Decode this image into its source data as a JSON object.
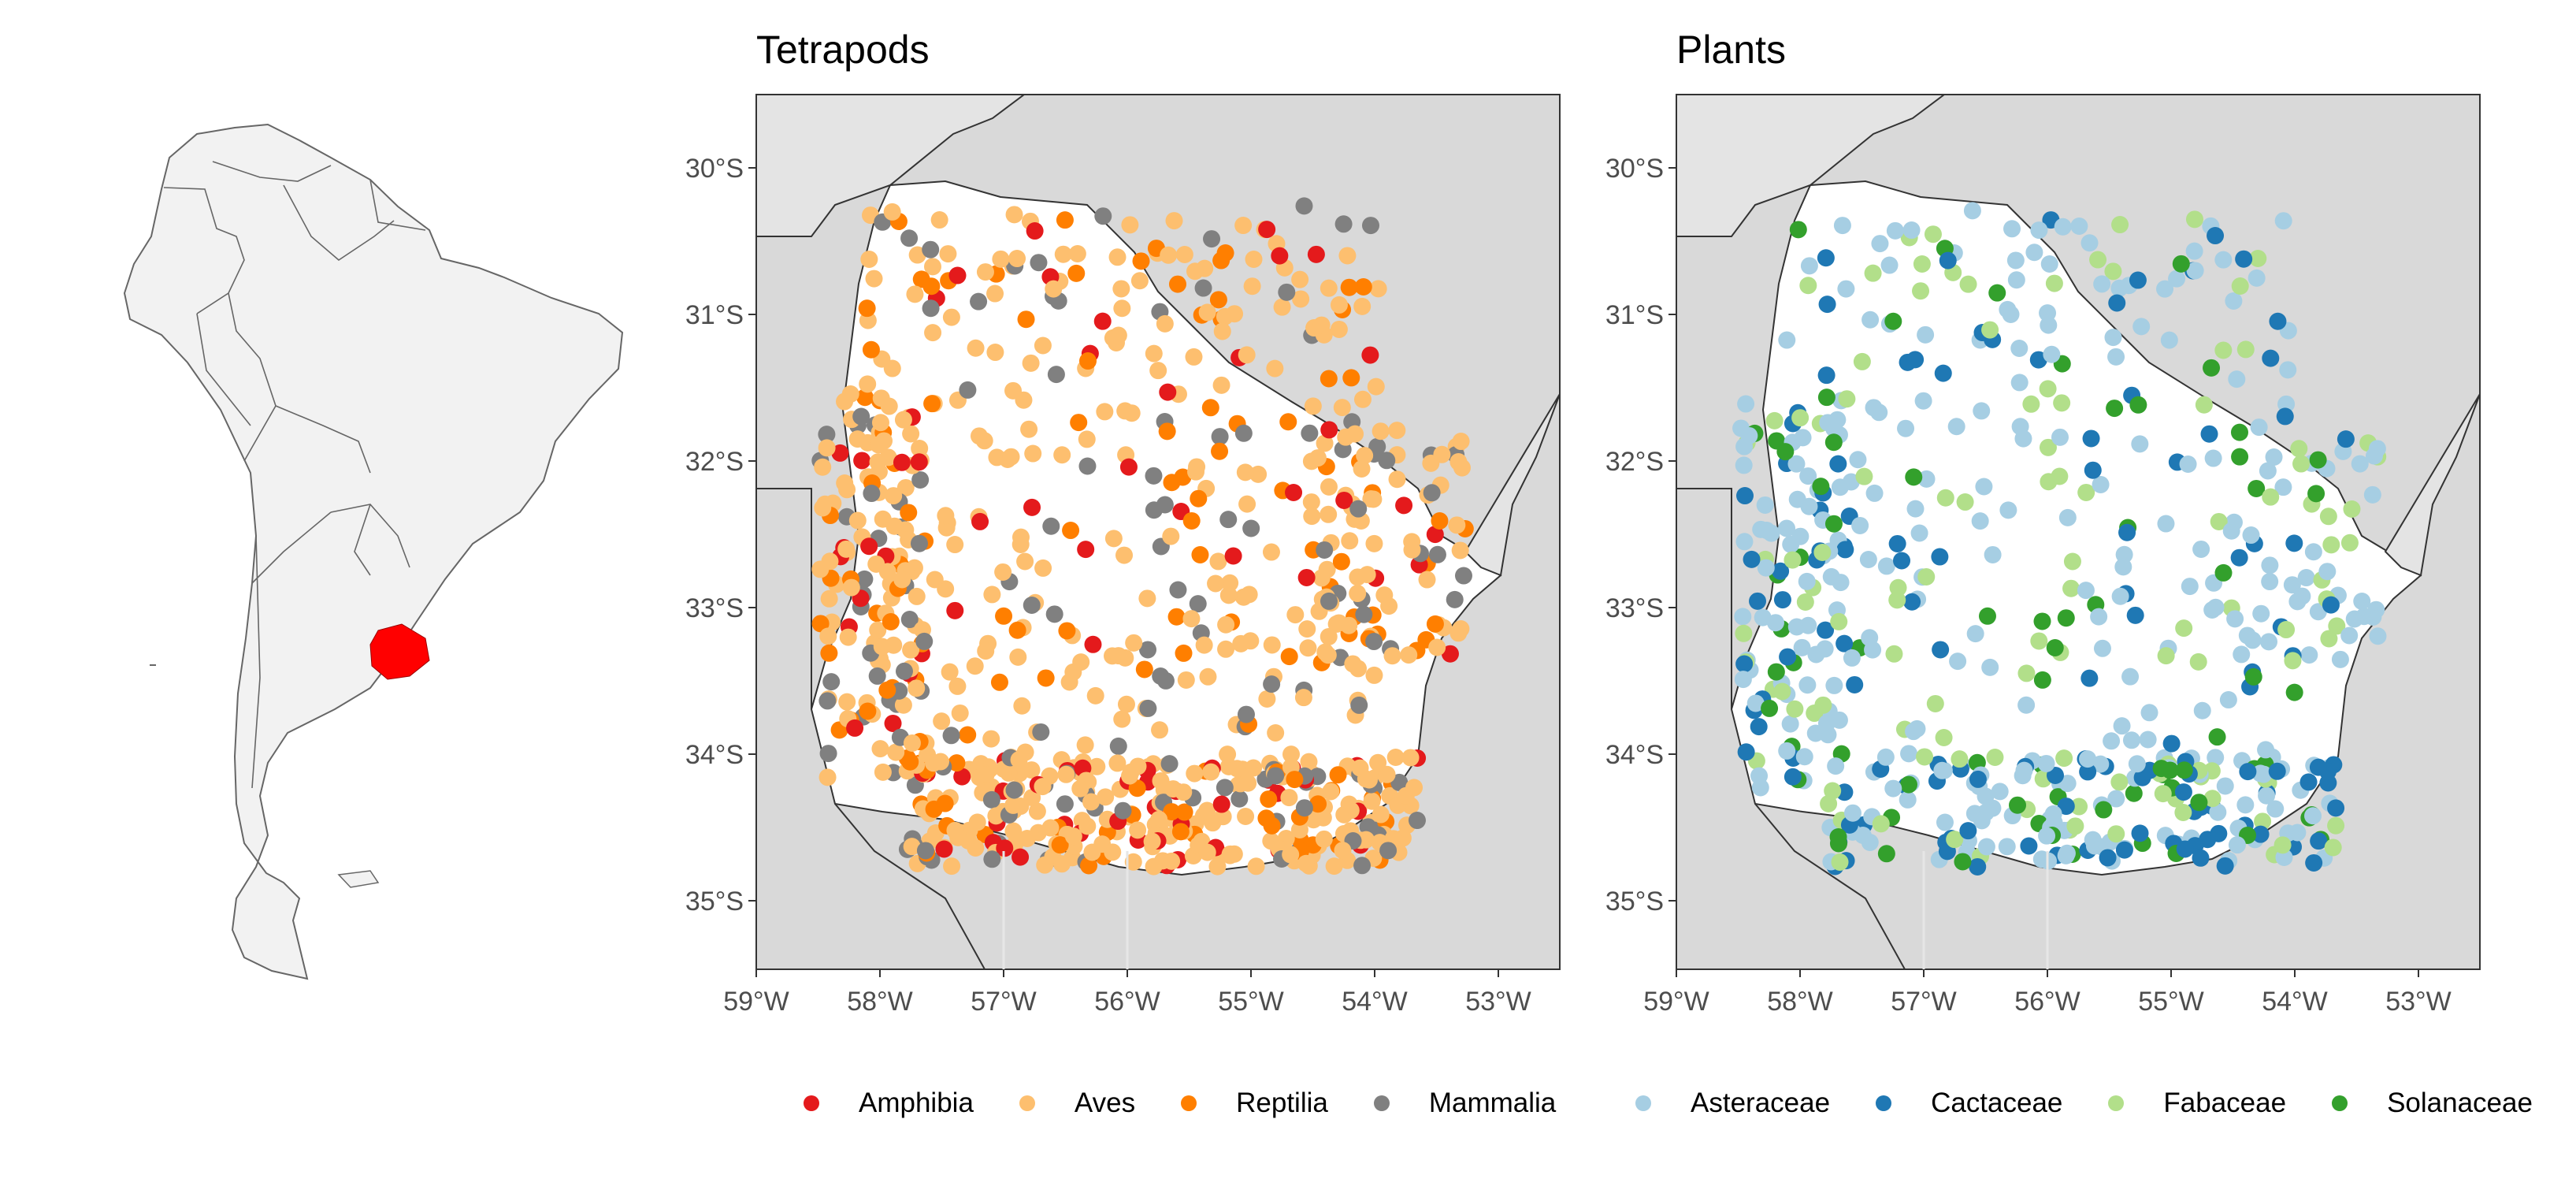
{
  "figure": {
    "inset": {
      "highlight_country": "Uruguay",
      "highlight_color": "#ff0000"
    },
    "panels": [
      {
        "title": "Tetrapods"
      },
      {
        "title": "Plants"
      }
    ],
    "colors": {
      "ocean": "#d9d9d9",
      "land": "#ffffff",
      "grid": "#e6e6e6"
    },
    "axis_ticks": {
      "y": [
        "30°S",
        "31°S",
        "32°S",
        "33°S",
        "34°S",
        "35°S"
      ],
      "x": [
        "59°W",
        "58°W",
        "57°W",
        "56°W",
        "55°W",
        "54°W",
        "53°W"
      ]
    },
    "legends": {
      "tetrapods": [
        {
          "label": "Amphibia",
          "color": "#e41a1c"
        },
        {
          "label": "Aves",
          "color": "#fdbf6f"
        },
        {
          "label": "Reptilia",
          "color": "#ff7f00"
        },
        {
          "label": "Mammalia",
          "color": "#808080"
        }
      ],
      "plants": [
        {
          "label": "Asteraceae",
          "color": "#a6cee3"
        },
        {
          "label": "Cactaceae",
          "color": "#1f78b4"
        },
        {
          "label": "Fabaceae",
          "color": "#b2df8a"
        },
        {
          "label": "Solanaceae",
          "color": "#33a02c"
        }
      ]
    }
  }
}
